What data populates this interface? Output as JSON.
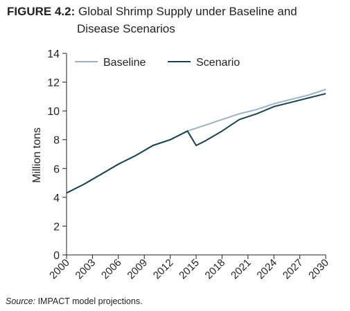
{
  "figure": {
    "label": "FIGURE 4.2:",
    "title_line1": "Global Shrimp Supply under Baseline and",
    "title_line2": "Disease Scenarios",
    "source_label": "Source:",
    "source_text": "IMPACT model projections."
  },
  "chart_data": {
    "type": "line",
    "ylabel": "Million tons",
    "xlabel": "",
    "xlim": [
      2000,
      2030
    ],
    "ylim": [
      0,
      14
    ],
    "yticks": [
      0,
      2,
      4,
      6,
      8,
      10,
      12,
      14
    ],
    "xticks": [
      2000,
      2003,
      2006,
      2009,
      2012,
      2015,
      2018,
      2021,
      2024,
      2027,
      2030
    ],
    "grid": false,
    "legend": "top-left",
    "series": [
      {
        "name": "Baseline",
        "color": "#9bb3c0",
        "x": [
          2000,
          2002,
          2004,
          2006,
          2008,
          2010,
          2012,
          2014,
          2015,
          2016,
          2018,
          2020,
          2022,
          2024,
          2026,
          2028,
          2030
        ],
        "values": [
          4.3,
          4.9,
          5.6,
          6.3,
          6.9,
          7.6,
          8.0,
          8.6,
          8.8,
          9.0,
          9.4,
          9.8,
          10.1,
          10.5,
          10.8,
          11.1,
          11.5
        ]
      },
      {
        "name": "Scenario",
        "color": "#17424f",
        "x": [
          2000,
          2002,
          2004,
          2006,
          2008,
          2010,
          2012,
          2014,
          2015,
          2016,
          2018,
          2020,
          2022,
          2024,
          2026,
          2028,
          2030
        ],
        "values": [
          4.3,
          4.9,
          5.6,
          6.3,
          6.9,
          7.6,
          8.0,
          8.6,
          7.6,
          7.9,
          8.6,
          9.4,
          9.8,
          10.3,
          10.6,
          10.9,
          11.2
        ]
      }
    ]
  }
}
